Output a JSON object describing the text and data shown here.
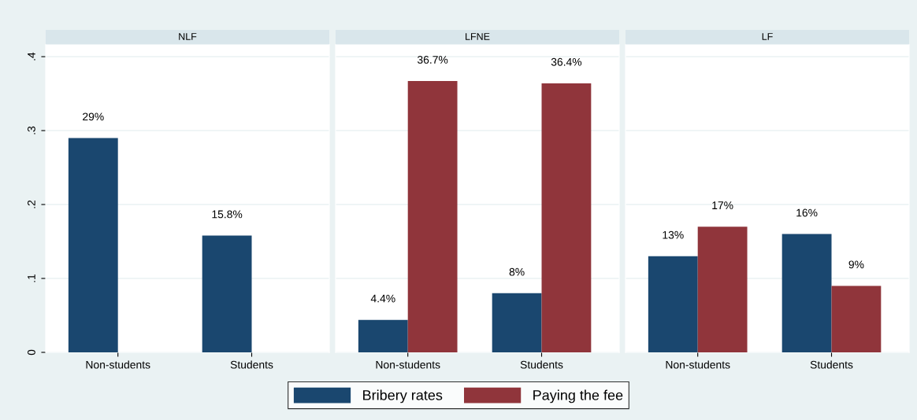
{
  "chart_data": [
    {
      "type": "bar",
      "title": "NLF",
      "categories": [
        "Non-students",
        "Students"
      ],
      "ylim": [
        0,
        0.416
      ],
      "yticks": [
        {
          "value": 0,
          "label": "0"
        },
        {
          "value": 0.1,
          "label": ".1"
        },
        {
          "value": 0.2,
          "label": ".2"
        },
        {
          "value": 0.3,
          "label": ".3"
        },
        {
          "value": 0.4,
          "label": ".4"
        }
      ],
      "grid": "y",
      "legend": "bottom",
      "series": [
        {
          "name": "Bribery rates",
          "color": "#1a476f",
          "values": [
            0.29,
            0.158
          ],
          "value_labels": [
            "29%",
            "15.8%"
          ]
        },
        {
          "name": "Paying the fee",
          "color": "#90353b",
          "values": [
            null,
            null
          ],
          "value_labels": [
            null,
            null
          ]
        }
      ]
    },
    {
      "type": "bar",
      "title": "LFNE",
      "categories": [
        "Non-students",
        "Students"
      ],
      "ylim": [
        0,
        0.416
      ],
      "yticks": [
        0,
        0.1,
        0.2,
        0.3,
        0.4
      ],
      "grid": "y",
      "tick_labels": "x",
      "series": [
        {
          "color": "#1a476f",
          "values": [
            0.044,
            0.08
          ],
          "value_labels": [
            "4.4%",
            "8%"
          ]
        },
        {
          "color": "#90353b",
          "values": [
            0.367,
            0.364
          ],
          "value_labels": [
            "36.7%",
            "36.4%"
          ]
        }
      ]
    },
    {
      "type": "bar",
      "title": "LF",
      "categories": [
        "Non-students",
        "Students"
      ],
      "ylim": [
        0,
        0.416
      ],
      "yticks": [
        0,
        0.1,
        0.2,
        0.3,
        0.4
      ],
      "grid": "y",
      "tick_labels": "x",
      "series": [
        {
          "color": "#1a476f",
          "values": [
            0.13,
            0.16
          ],
          "value_labels": [
            "13%",
            "16%"
          ]
        },
        {
          "color": "#90353b",
          "values": [
            0.17,
            0.09
          ],
          "value_labels": [
            "17%",
            "9%"
          ]
        }
      ]
    }
  ]
}
